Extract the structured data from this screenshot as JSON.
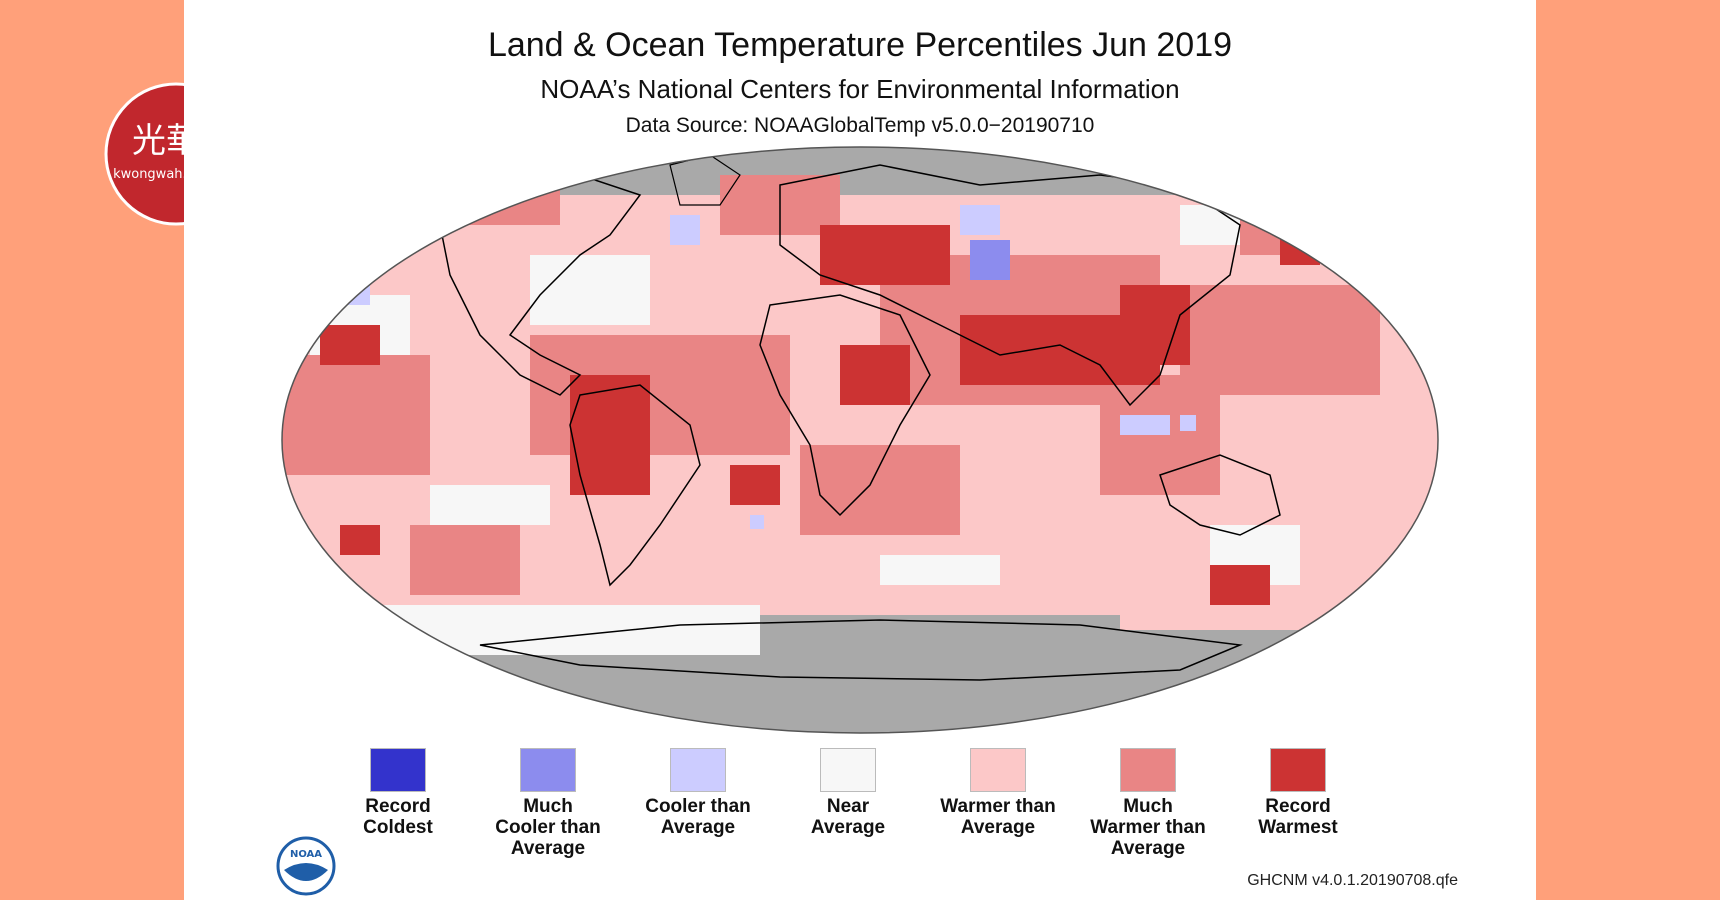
{
  "title": "Land & Ocean Temperature Percentiles Jun 2019",
  "subtitle": "NOAA’s National Centers for Environmental Information",
  "source": "Data Source: NOAAGlobalTemp v5.0.0−20190710",
  "version_note": "GHCNM v4.0.1.20190708.qfe",
  "brand": {
    "chinese": "光華",
    "domain": "kwongwah.com.my"
  },
  "noaa_label": "NOAA",
  "colors": {
    "record_coldest": "#3333cc",
    "much_cooler": "#8c8cee",
    "cooler": "#ccccff",
    "near": "#f7f7f7",
    "warmer": "#fcc8c8",
    "much_warmer": "#e98585",
    "record_warmest": "#cc3333",
    "no_data": "#a9a9a9",
    "side": "#ffa07a",
    "brand_red": "#c1272d"
  },
  "legend": [
    {
      "label": "Record\nColdest",
      "color": "#3333cc"
    },
    {
      "label": "Much\nCooler than\nAverage",
      "color": "#8c8cee"
    },
    {
      "label": "Cooler than\nAverage",
      "color": "#ccccff"
    },
    {
      "label": "Near\nAverage",
      "color": "#f7f7f7"
    },
    {
      "label": "Warmer than\nAverage",
      "color": "#fcc8c8"
    },
    {
      "label": "Much\nWarmer than\nAverage",
      "color": "#e98585"
    },
    {
      "label": "Record\nWarmest",
      "color": "#cc3333"
    }
  ]
}
